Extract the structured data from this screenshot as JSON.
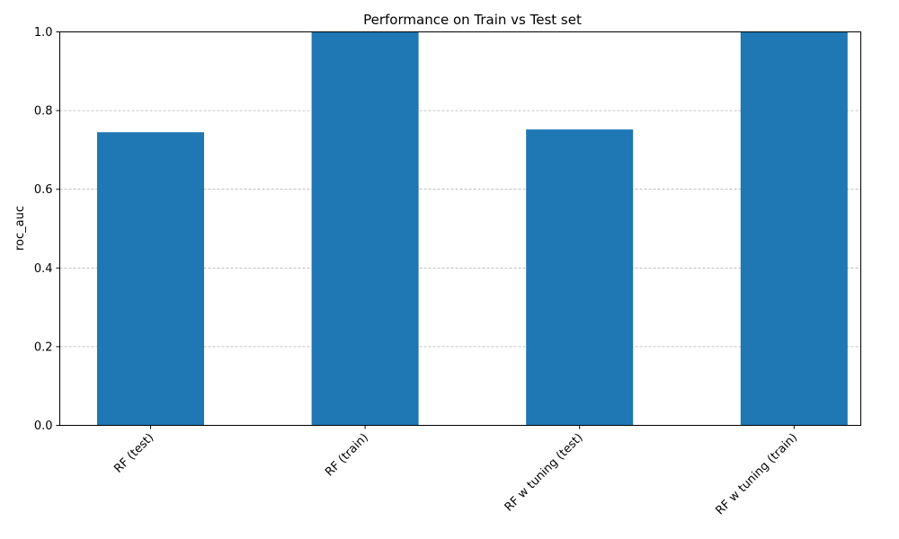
{
  "chart_data": {
    "type": "bar",
    "title": "Performance on Train vs Test set",
    "xlabel": "",
    "ylabel": "roc_auc",
    "categories": [
      "RF (test)",
      "RF (train)",
      "RF w tuning (test)",
      "RF w tuning (train)"
    ],
    "values": [
      0.745,
      1.0,
      0.752,
      1.0
    ],
    "ylim": [
      0,
      1.0
    ],
    "yticks": [
      "0.0",
      "0.2",
      "0.4",
      "0.6",
      "0.8",
      "1.0"
    ],
    "grid": "y-dashed",
    "bar_color": "#1f77b4",
    "grid_color": "#b0b0b0"
  }
}
